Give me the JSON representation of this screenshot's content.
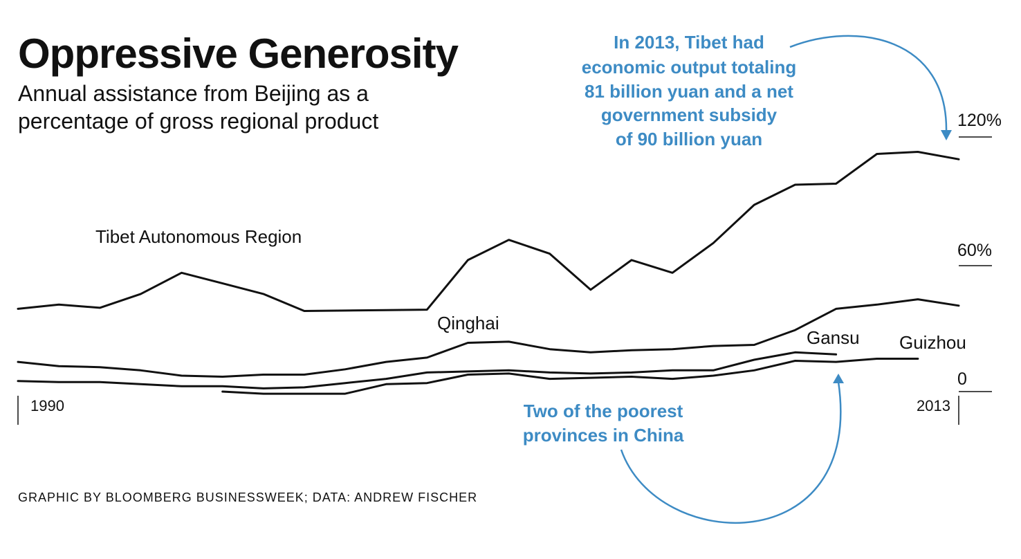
{
  "header": {
    "title": "Oppressive Generosity",
    "subtitle_lines": [
      "Annual assistance from Beijing as a",
      "percentage of gross regional product"
    ]
  },
  "annotations": {
    "tibet_note": [
      "In 2013, Tibet had",
      "economic output totaling",
      "81 billion yuan and a net",
      "government subsidy",
      "of 90 billion yuan"
    ],
    "poor_provinces_note": [
      "Two of the poorest",
      "provinces in China"
    ]
  },
  "credit": "GRAPHIC BY BLOOMBERG BUSINESSWEEK; DATA: ANDREW FISCHER",
  "colors": {
    "annotation": "#3d8bc4",
    "line": "#111111"
  },
  "chart_data": {
    "type": "line",
    "title": "Oppressive Generosity",
    "subtitle": "Annual assistance from Beijing as a percentage of gross regional product",
    "xlabel": "",
    "ylabel": "",
    "x": [
      1990,
      1991,
      1992,
      1993,
      1994,
      1995,
      1996,
      1997,
      1998,
      1999,
      2000,
      2001,
      2002,
      2003,
      2004,
      2005,
      2006,
      2007,
      2008,
      2009,
      2010,
      2011,
      2012,
      2013
    ],
    "x_tick_labels": [
      "1990",
      "2013"
    ],
    "y_tick_labels": [
      "120%",
      "60%",
      "0"
    ],
    "y_ticks": [
      120,
      60,
      0
    ],
    "ylim": [
      0,
      120
    ],
    "grid": false,
    "series": [
      {
        "name": "Tibet Autonomous Region",
        "x": [
          1990,
          1991,
          1992,
          1993,
          1994,
          1995,
          1996,
          1997,
          1998,
          1999,
          2000,
          2001,
          2002,
          2003,
          2004,
          2005,
          2006,
          2007,
          2008,
          2009,
          2010,
          2011,
          2012,
          2013
        ],
        "values": [
          39,
          41,
          39.5,
          46,
          56,
          51,
          46,
          38,
          38.2,
          38.4,
          38.6,
          62,
          71.5,
          65,
          48,
          62,
          56,
          70,
          88,
          97.5,
          98,
          112,
          113,
          109.5
        ]
      },
      {
        "name": "Qinghai",
        "x": [
          1990,
          1991,
          1992,
          1993,
          1994,
          1995,
          1996,
          1997,
          1998,
          1999,
          2000,
          2001,
          2002,
          2003,
          2004,
          2005,
          2006,
          2007,
          2008,
          2009,
          2010,
          2011,
          2012,
          2013
        ],
        "values": [
          14,
          12,
          11.5,
          10,
          7.5,
          7,
          8,
          8,
          10.5,
          14,
          16,
          23,
          23.5,
          20,
          18.5,
          19.5,
          20,
          21.5,
          22,
          29,
          39,
          41,
          43.5,
          40.5
        ]
      },
      {
        "name": "Gansu",
        "x": [
          1990,
          1991,
          1992,
          1993,
          1994,
          1995,
          1996,
          1997,
          1998,
          1999,
          2000,
          2001,
          2002,
          2003,
          2004,
          2005,
          2006,
          2007,
          2008,
          2009,
          2010,
          2011
        ],
        "values": [
          5,
          4.5,
          4.5,
          3.5,
          2.5,
          2.5,
          1.5,
          2,
          4,
          6,
          9,
          9.5,
          10,
          9,
          8.5,
          9,
          10,
          10,
          15,
          18.5,
          17.5,
          null
        ]
      },
      {
        "name": "Guizhou",
        "x": [
          1995,
          1996,
          1997,
          1998,
          1999,
          2000,
          2001,
          2002,
          2003,
          2004,
          2005,
          2006,
          2007,
          2008,
          2009,
          2010,
          2011,
          2012
        ],
        "values": [
          0,
          -1,
          -1,
          -1,
          3.5,
          4,
          8,
          8.5,
          6,
          6.5,
          7,
          6,
          7.5,
          10,
          14.5,
          14,
          15.5,
          15.5
        ]
      }
    ]
  }
}
